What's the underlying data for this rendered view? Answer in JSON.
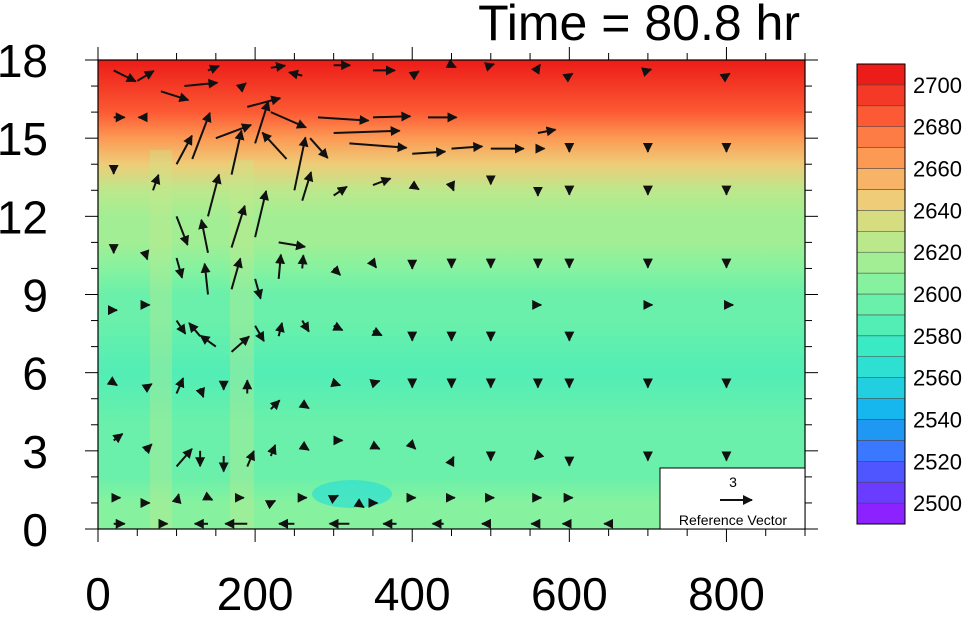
{
  "chart_data": {
    "type": "heatmap",
    "title": "Time = 80.8 hr",
    "xlabel": "",
    "ylabel": "",
    "xlim": [
      0,
      900
    ],
    "ylim": [
      0,
      18
    ],
    "x_ticks": [
      "0",
      "200",
      "400",
      "600",
      "800"
    ],
    "y_ticks": [
      "0",
      "3",
      "6",
      "9",
      "12",
      "15",
      "18"
    ],
    "colorbar": {
      "levels": [
        2490,
        2500,
        2510,
        2520,
        2530,
        2540,
        2550,
        2560,
        2570,
        2580,
        2590,
        2600,
        2610,
        2620,
        2630,
        2640,
        2650,
        2660,
        2670,
        2680,
        2690,
        2700,
        2710
      ],
      "labels": [
        "2500",
        "2520",
        "2540",
        "2560",
        "2580",
        "2600",
        "2620",
        "2640",
        "2660",
        "2680",
        "2700"
      ],
      "colors": [
        "#8c22ff",
        "#6a3cff",
        "#4f56ff",
        "#3a78ff",
        "#1f98f4",
        "#16b6ee",
        "#22cfe0",
        "#2ee0d2",
        "#3aeac4",
        "#52eeb6",
        "#6af0aa",
        "#86f2a0",
        "#a2ee94",
        "#bce88c",
        "#d6dc80",
        "#eecc78",
        "#f8b466",
        "#fc9a54",
        "#fd7c46",
        "#fc5a34",
        "#f43a26",
        "#ec1c18"
      ]
    },
    "field_z": [
      2600,
      2600,
      2596,
      2592,
      2590,
      2588,
      2592,
      2598,
      2604,
      2610,
      2616,
      2624,
      2640,
      2662,
      2682,
      2698,
      2705
    ],
    "field_y": [
      0,
      1,
      2,
      3,
      4,
      6,
      8,
      9,
      10,
      11,
      12,
      13,
      14,
      15,
      16,
      17,
      18
    ],
    "vectors": [
      {
        "x": 20,
        "y": 17.6,
        "u": 2.0,
        "v": -1.0
      },
      {
        "x": 50,
        "y": 17.2,
        "u": 1.5,
        "v": 0.9
      },
      {
        "x": 80,
        "y": 16.8,
        "u": 2.5,
        "v": -0.8
      },
      {
        "x": 110,
        "y": 17.0,
        "u": 3.0,
        "v": 0.3
      },
      {
        "x": 140,
        "y": 17.6,
        "u": 1.0,
        "v": 0.4
      },
      {
        "x": 180,
        "y": 16.9,
        "u": 0.6,
        "v": 0.5
      },
      {
        "x": 220,
        "y": 17.7,
        "u": 1.3,
        "v": 0.2
      },
      {
        "x": 260,
        "y": 17.4,
        "u": -1.2,
        "v": 0.3
      },
      {
        "x": 300,
        "y": 17.8,
        "u": 1.5,
        "v": 0.0
      },
      {
        "x": 350,
        "y": 17.6,
        "u": 2.0,
        "v": 0.0
      },
      {
        "x": 400,
        "y": 17.4,
        "u": 0.6,
        "v": 0.4
      },
      {
        "x": 450,
        "y": 17.8,
        "u": 0.4,
        "v": -0.2
      },
      {
        "x": 500,
        "y": 17.8,
        "u": 0.3,
        "v": 0.1
      },
      {
        "x": 560,
        "y": 17.7,
        "u": 0.2,
        "v": 0.3
      },
      {
        "x": 600,
        "y": 17.4,
        "u": 0.3,
        "v": 0.2
      },
      {
        "x": 700,
        "y": 17.6,
        "u": 0.3,
        "v": 0.1
      },
      {
        "x": 800,
        "y": 17.4,
        "u": 0.3,
        "v": 0.2
      },
      {
        "x": 20,
        "y": 15.8,
        "u": 1.0,
        "v": 0.0
      },
      {
        "x": 60,
        "y": 15.8,
        "u": -0.6,
        "v": 0.0
      },
      {
        "x": 100,
        "y": 14.0,
        "u": 1.4,
        "v": 2.6
      },
      {
        "x": 120,
        "y": 14.2,
        "u": 1.6,
        "v": 4.2
      },
      {
        "x": 140,
        "y": 12.0,
        "u": 1.0,
        "v": 3.8
      },
      {
        "x": 150,
        "y": 15.0,
        "u": 3.2,
        "v": 1.2
      },
      {
        "x": 170,
        "y": 13.6,
        "u": 0.9,
        "v": 4.0
      },
      {
        "x": 190,
        "y": 16.2,
        "u": 3.0,
        "v": 0.8
      },
      {
        "x": 200,
        "y": 14.8,
        "u": 1.2,
        "v": 3.8
      },
      {
        "x": 220,
        "y": 16.0,
        "u": 3.2,
        "v": -1.4
      },
      {
        "x": 240,
        "y": 14.2,
        "u": -2.2,
        "v": 2.4
      },
      {
        "x": 250,
        "y": 13.0,
        "u": 1.0,
        "v": 4.8
      },
      {
        "x": 270,
        "y": 15.0,
        "u": 1.6,
        "v": -1.8
      },
      {
        "x": 280,
        "y": 15.8,
        "u": 4.6,
        "v": -0.3
      },
      {
        "x": 300,
        "y": 15.2,
        "u": 6.0,
        "v": 0.2
      },
      {
        "x": 320,
        "y": 14.8,
        "u": 5.2,
        "v": -0.4
      },
      {
        "x": 350,
        "y": 15.8,
        "u": 3.4,
        "v": 0.1
      },
      {
        "x": 400,
        "y": 14.4,
        "u": 3.0,
        "v": 0.2
      },
      {
        "x": 420,
        "y": 15.8,
        "u": 2.6,
        "v": 0.0
      },
      {
        "x": 450,
        "y": 14.6,
        "u": 2.8,
        "v": 0.2
      },
      {
        "x": 500,
        "y": 14.6,
        "u": 3.0,
        "v": 0.0
      },
      {
        "x": 560,
        "y": 15.2,
        "u": 1.6,
        "v": 0.3
      },
      {
        "x": 560,
        "y": 14.6,
        "u": 0.6,
        "v": 0.0
      },
      {
        "x": 600,
        "y": 14.6,
        "u": 0.0,
        "v": -0.3
      },
      {
        "x": 700,
        "y": 14.6,
        "u": 0.0,
        "v": -0.3
      },
      {
        "x": 800,
        "y": 14.6,
        "u": 0.0,
        "v": -0.3
      },
      {
        "x": 20,
        "y": 13.8,
        "u": 0.0,
        "v": -0.4
      },
      {
        "x": 70,
        "y": 13.0,
        "u": 0.5,
        "v": 1.4
      },
      {
        "x": 100,
        "y": 12.0,
        "u": 1.0,
        "v": -2.6
      },
      {
        "x": 140,
        "y": 10.6,
        "u": -0.6,
        "v": 3.0
      },
      {
        "x": 170,
        "y": 10.8,
        "u": 1.2,
        "v": 3.8
      },
      {
        "x": 200,
        "y": 11.2,
        "u": 1.0,
        "v": 4.2
      },
      {
        "x": 230,
        "y": 11.0,
        "u": 2.4,
        "v": -0.4
      },
      {
        "x": 260,
        "y": 12.6,
        "u": 0.8,
        "v": 2.6
      },
      {
        "x": 300,
        "y": 12.8,
        "u": 1.2,
        "v": 0.8
      },
      {
        "x": 350,
        "y": 13.2,
        "u": 1.6,
        "v": 0.6
      },
      {
        "x": 400,
        "y": 13.2,
        "u": 0.6,
        "v": -0.4
      },
      {
        "x": 450,
        "y": 13.2,
        "u": 0.2,
        "v": -0.5
      },
      {
        "x": 500,
        "y": 13.4,
        "u": 0.0,
        "v": -0.4
      },
      {
        "x": 560,
        "y": 13.0,
        "u": 0.0,
        "v": -0.5
      },
      {
        "x": 600,
        "y": 13.0,
        "u": 0.0,
        "v": -0.4
      },
      {
        "x": 700,
        "y": 13.0,
        "u": 0.0,
        "v": -0.4
      },
      {
        "x": 800,
        "y": 13.0,
        "u": 0.0,
        "v": -0.4
      },
      {
        "x": 20,
        "y": 10.8,
        "u": 0.0,
        "v": -0.5
      },
      {
        "x": 60,
        "y": 10.6,
        "u": 0.2,
        "v": -0.6
      },
      {
        "x": 100,
        "y": 10.4,
        "u": 0.5,
        "v": -1.8
      },
      {
        "x": 140,
        "y": 9.0,
        "u": -0.3,
        "v": 2.8
      },
      {
        "x": 170,
        "y": 9.2,
        "u": 0.8,
        "v": 2.8
      },
      {
        "x": 200,
        "y": 9.6,
        "u": 0.5,
        "v": -1.8
      },
      {
        "x": 230,
        "y": 9.6,
        "u": 0.2,
        "v": 2.2
      },
      {
        "x": 260,
        "y": 10.0,
        "u": 0.1,
        "v": 1.2
      },
      {
        "x": 300,
        "y": 10.0,
        "u": 0.6,
        "v": -0.6
      },
      {
        "x": 350,
        "y": 10.2,
        "u": 0.3,
        "v": -0.4
      },
      {
        "x": 400,
        "y": 10.2,
        "u": 0.0,
        "v": -0.5
      },
      {
        "x": 450,
        "y": 10.2,
        "u": 0.0,
        "v": -0.4
      },
      {
        "x": 500,
        "y": 10.2,
        "u": 0.0,
        "v": -0.4
      },
      {
        "x": 560,
        "y": 10.2,
        "u": 0.0,
        "v": -0.4
      },
      {
        "x": 600,
        "y": 10.2,
        "u": 0.0,
        "v": -0.4
      },
      {
        "x": 700,
        "y": 10.2,
        "u": 0.0,
        "v": -0.4
      },
      {
        "x": 800,
        "y": 10.2,
        "u": 0.0,
        "v": -0.4
      },
      {
        "x": 20,
        "y": 8.4,
        "u": 0.3,
        "v": 0.0
      },
      {
        "x": 60,
        "y": 8.6,
        "u": 0.4,
        "v": 0.0
      },
      {
        "x": 100,
        "y": 8.0,
        "u": 0.8,
        "v": -1.2
      },
      {
        "x": 130,
        "y": 7.4,
        "u": -1.0,
        "v": 1.2
      },
      {
        "x": 150,
        "y": 7.0,
        "u": -1.4,
        "v": 1.0
      },
      {
        "x": 170,
        "y": 6.8,
        "u": 1.6,
        "v": 1.4
      },
      {
        "x": 200,
        "y": 7.8,
        "u": 0.8,
        "v": -1.4
      },
      {
        "x": 230,
        "y": 7.4,
        "u": 0.3,
        "v": 1.2
      },
      {
        "x": 260,
        "y": 8.0,
        "u": 0.6,
        "v": -1.0
      },
      {
        "x": 300,
        "y": 7.8,
        "u": 0.8,
        "v": -0.4
      },
      {
        "x": 350,
        "y": 7.6,
        "u": 0.8,
        "v": -0.4
      },
      {
        "x": 400,
        "y": 7.4,
        "u": 0.0,
        "v": -0.4
      },
      {
        "x": 450,
        "y": 7.4,
        "u": 0.0,
        "v": -0.4
      },
      {
        "x": 500,
        "y": 7.4,
        "u": 0.0,
        "v": -0.4
      },
      {
        "x": 560,
        "y": 8.6,
        "u": 0.3,
        "v": 0.0
      },
      {
        "x": 600,
        "y": 7.4,
        "u": 0.0,
        "v": -0.4
      },
      {
        "x": 700,
        "y": 8.6,
        "u": 0.4,
        "v": 0.0
      },
      {
        "x": 800,
        "y": 8.6,
        "u": 0.6,
        "v": 0.0
      },
      {
        "x": 20,
        "y": 5.6,
        "u": 0.3,
        "v": -0.2
      },
      {
        "x": 60,
        "y": 5.4,
        "u": 0.6,
        "v": 0.4
      },
      {
        "x": 100,
        "y": 5.2,
        "u": 0.6,
        "v": 1.4
      },
      {
        "x": 130,
        "y": 5.4,
        "u": 0.3,
        "v": -0.8
      },
      {
        "x": 160,
        "y": 5.6,
        "u": 0.0,
        "v": -0.6
      },
      {
        "x": 190,
        "y": 5.2,
        "u": 0.0,
        "v": 1.2
      },
      {
        "x": 220,
        "y": 4.6,
        "u": 0.8,
        "v": 0.8
      },
      {
        "x": 260,
        "y": 4.8,
        "u": 0.6,
        "v": -0.4
      },
      {
        "x": 300,
        "y": 5.6,
        "u": 0.6,
        "v": -0.2
      },
      {
        "x": 350,
        "y": 5.6,
        "u": 0.6,
        "v": 0.2
      },
      {
        "x": 400,
        "y": 5.6,
        "u": 0.0,
        "v": -0.4
      },
      {
        "x": 450,
        "y": 5.6,
        "u": 0.0,
        "v": -0.4
      },
      {
        "x": 500,
        "y": 5.6,
        "u": 0.0,
        "v": -0.4
      },
      {
        "x": 560,
        "y": 5.6,
        "u": 0.0,
        "v": -0.4
      },
      {
        "x": 600,
        "y": 5.6,
        "u": 0.0,
        "v": -0.4
      },
      {
        "x": 700,
        "y": 5.6,
        "u": 0.0,
        "v": -0.4
      },
      {
        "x": 800,
        "y": 5.6,
        "u": 0.0,
        "v": -0.4
      },
      {
        "x": 20,
        "y": 3.4,
        "u": 0.8,
        "v": 0.6
      },
      {
        "x": 60,
        "y": 3.0,
        "u": 0.6,
        "v": 0.6
      },
      {
        "x": 100,
        "y": 2.4,
        "u": 1.4,
        "v": 1.6
      },
      {
        "x": 130,
        "y": 3.0,
        "u": 0.0,
        "v": -1.4
      },
      {
        "x": 160,
        "y": 2.8,
        "u": 0.0,
        "v": -1.4
      },
      {
        "x": 190,
        "y": 2.4,
        "u": 0.6,
        "v": 1.4
      },
      {
        "x": 220,
        "y": 2.8,
        "u": 0.4,
        "v": 1.0
      },
      {
        "x": 260,
        "y": 3.2,
        "u": 0.6,
        "v": -0.4
      },
      {
        "x": 300,
        "y": 3.4,
        "u": 0.8,
        "v": 0.0
      },
      {
        "x": 350,
        "y": 3.2,
        "u": 0.6,
        "v": -0.3
      },
      {
        "x": 400,
        "y": 3.2,
        "u": 0.3,
        "v": -0.3
      },
      {
        "x": 450,
        "y": 2.6,
        "u": 0.2,
        "v": 0.4
      },
      {
        "x": 500,
        "y": 2.8,
        "u": 0.0,
        "v": -0.4
      },
      {
        "x": 560,
        "y": 2.8,
        "u": -0.3,
        "v": -0.3
      },
      {
        "x": 600,
        "y": 2.6,
        "u": 0.0,
        "v": -0.4
      },
      {
        "x": 700,
        "y": 2.8,
        "u": 0.0,
        "v": -0.4
      },
      {
        "x": 800,
        "y": 2.8,
        "u": 0.0,
        "v": -0.4
      },
      {
        "x": 20,
        "y": 1.2,
        "u": 0.6,
        "v": 0.0
      },
      {
        "x": 60,
        "y": 1.0,
        "u": 0.4,
        "v": 0.0
      },
      {
        "x": 100,
        "y": 1.0,
        "u": 0.2,
        "v": 0.8
      },
      {
        "x": 140,
        "y": 1.2,
        "u": 0.4,
        "v": -0.2
      },
      {
        "x": 180,
        "y": 1.2,
        "u": 0.4,
        "v": 0.0
      },
      {
        "x": 220,
        "y": 1.0,
        "u": 0.4,
        "v": 0.2
      },
      {
        "x": 260,
        "y": 1.2,
        "u": 0.4,
        "v": 0.0
      },
      {
        "x": 300,
        "y": 1.2,
        "u": 0.4,
        "v": 0.2
      },
      {
        "x": 330,
        "y": 1.0,
        "u": 0.6,
        "v": -0.4
      },
      {
        "x": 350,
        "y": 1.0,
        "u": 0.4,
        "v": 0.0
      },
      {
        "x": 400,
        "y": 1.2,
        "u": 0.3,
        "v": 0.0
      },
      {
        "x": 450,
        "y": 1.2,
        "u": 0.3,
        "v": 0.0
      },
      {
        "x": 500,
        "y": 1.2,
        "u": 0.3,
        "v": 0.0
      },
      {
        "x": 560,
        "y": 1.2,
        "u": 0.3,
        "v": 0.0
      },
      {
        "x": 600,
        "y": 1.2,
        "u": 0.3,
        "v": 0.0
      },
      {
        "x": 20,
        "y": 0.2,
        "u": 1.0,
        "v": 0.0
      },
      {
        "x": 80,
        "y": 0.2,
        "u": 0.6,
        "v": 0.0
      },
      {
        "x": 140,
        "y": 0.2,
        "u": -1.2,
        "v": 0.0
      },
      {
        "x": 190,
        "y": 0.2,
        "u": -2.0,
        "v": 0.0
      },
      {
        "x": 250,
        "y": 0.2,
        "u": -1.4,
        "v": 0.0
      },
      {
        "x": 320,
        "y": 0.2,
        "u": -1.8,
        "v": 0.0
      },
      {
        "x": 380,
        "y": 0.2,
        "u": -1.2,
        "v": 0.0
      },
      {
        "x": 440,
        "y": 0.2,
        "u": -1.0,
        "v": 0.0
      },
      {
        "x": 500,
        "y": 0.2,
        "u": -0.8,
        "v": 0.0
      },
      {
        "x": 560,
        "y": 0.2,
        "u": -0.6,
        "v": 0.0
      },
      {
        "x": 600,
        "y": 0.2,
        "u": -0.6,
        "v": 0.0
      },
      {
        "x": 650,
        "y": 0.2,
        "u": -0.4,
        "v": 0.0
      }
    ],
    "reference_vector": {
      "value": "3",
      "label": "Reference Vector"
    }
  }
}
